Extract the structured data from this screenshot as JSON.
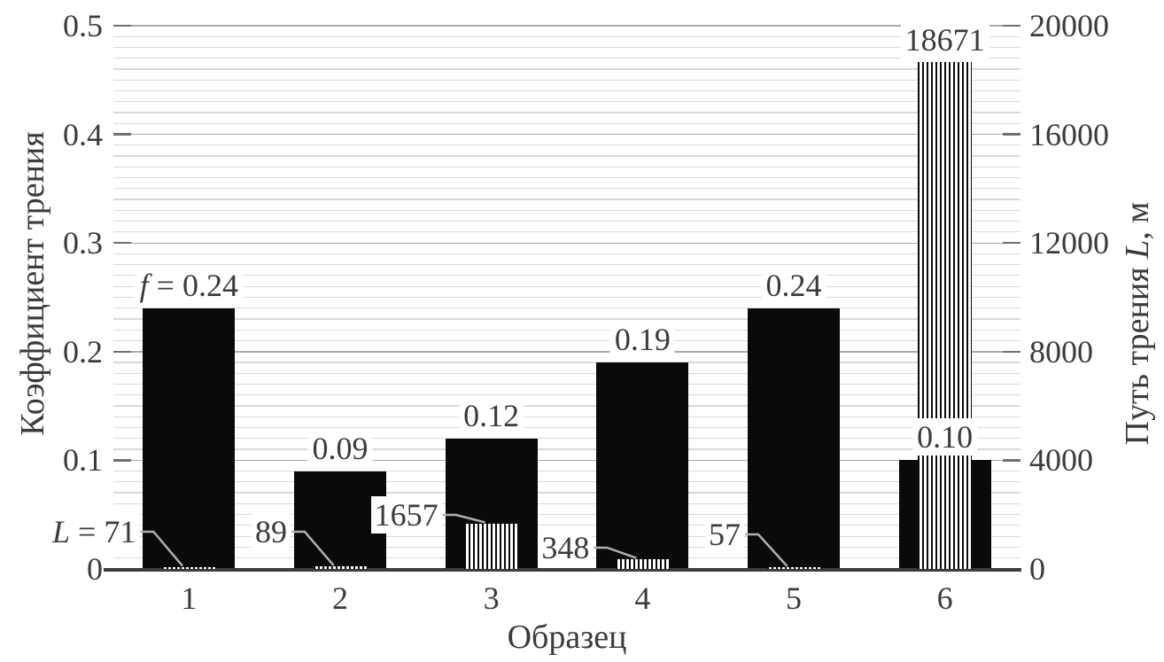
{
  "chart_data": {
    "type": "bar",
    "title": "",
    "xlabel": "Образец",
    "categories": [
      "1",
      "2",
      "3",
      "4",
      "5",
      "6"
    ],
    "axes": {
      "left": {
        "label": "Коэффициент трения",
        "ticks": [
          "0.5",
          "0.4",
          "0.3",
          "0.2",
          "0.1",
          "0"
        ],
        "min": 0,
        "max": 0.5,
        "major_step": 0.1,
        "minor_step": 0.01
      },
      "right": {
        "label_parts": [
          "Путь трения ",
          "L",
          ", м"
        ],
        "ticks": [
          "20000",
          "16000",
          "12000",
          "8000",
          "4000",
          "0"
        ],
        "min": 0,
        "max": 20000,
        "major_step": 4000,
        "minor_step": 400
      }
    },
    "grid": "minor horizontal lines on, verticals off",
    "legend": "none",
    "series": [
      {
        "name": "Коэффициент трения",
        "symbol": "f",
        "style": "solid-black",
        "axis": "left",
        "values": [
          0.24,
          0.09,
          0.12,
          0.19,
          0.24,
          0.1
        ],
        "labels": [
          "0.24",
          "0.09",
          "0.12",
          "0.19",
          "0.24",
          "0.10"
        ]
      },
      {
        "name": "Путь трения",
        "symbol": "L",
        "style": "vertical-stripes",
        "axis": "right",
        "values": [
          71,
          89,
          1657,
          348,
          57,
          18671
        ],
        "labels": [
          "71",
          "89",
          "1657",
          "348",
          "57",
          "18671"
        ]
      }
    ],
    "colors": {
      "background": "#ffffff",
      "bar": "#0a0a0a",
      "stripe_bg": "#ffffff",
      "grid_minor": "#d9d9d9",
      "grid_major": "#ababab",
      "axis": "#3c3c3c",
      "tick": "#707070",
      "text": "#3b3b3b",
      "leader": "#b0b0b0"
    }
  }
}
